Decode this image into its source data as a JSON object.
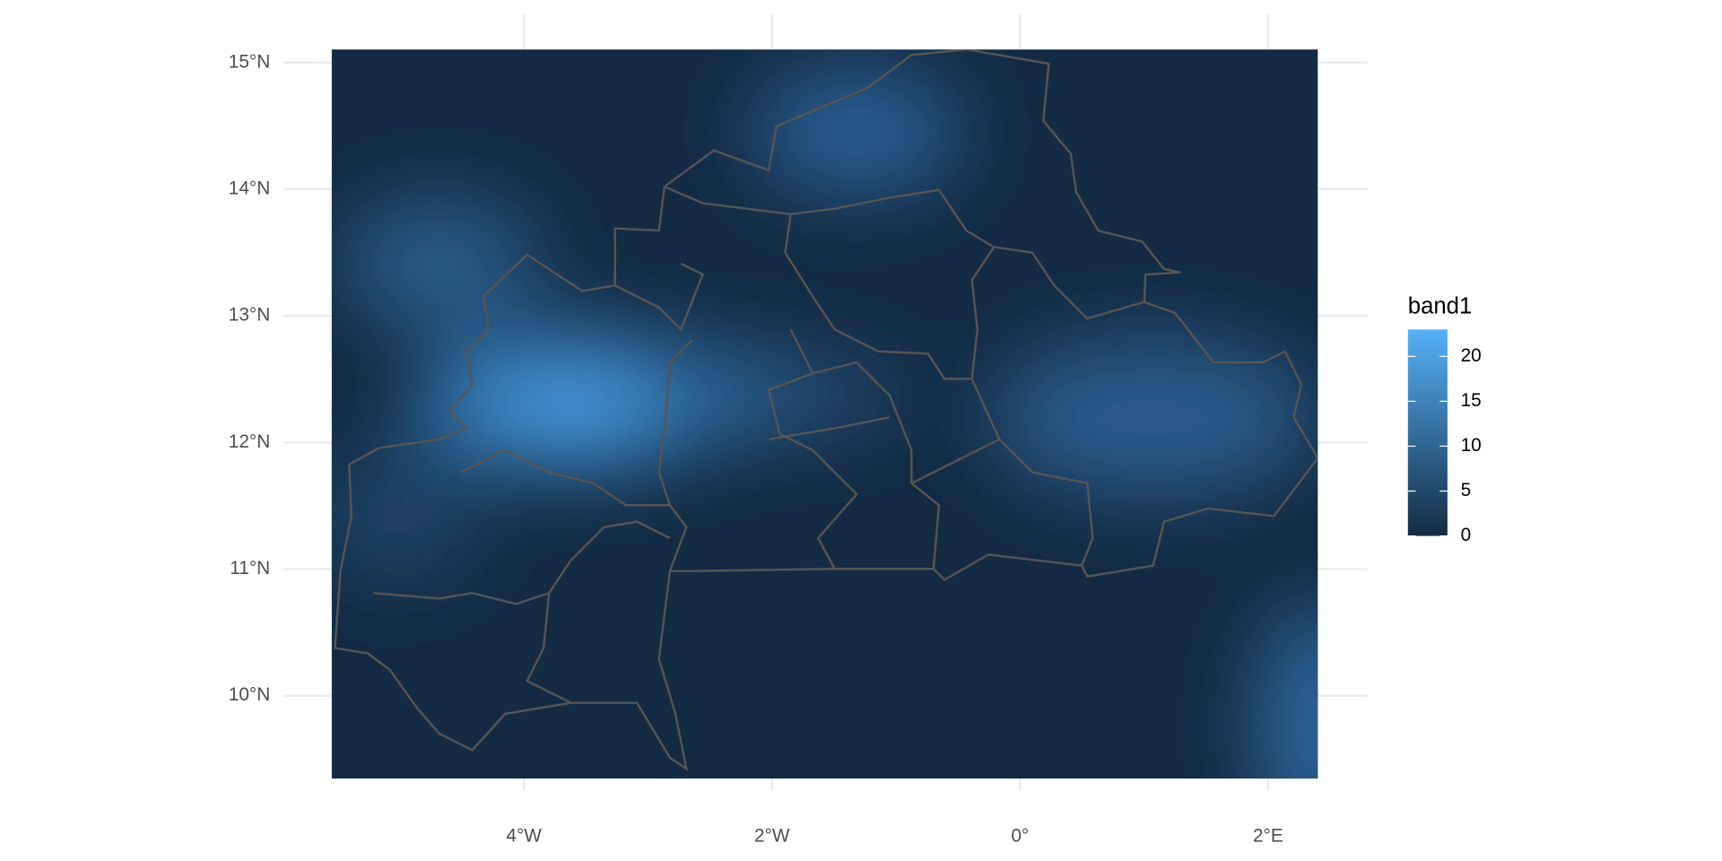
{
  "chart_data": {
    "type": "raster",
    "xlim": [
      -5.94,
      2.8
    ],
    "ylim": [
      9.25,
      15.39
    ],
    "xticks": [
      {
        "value": -4,
        "label": "4°W"
      },
      {
        "value": -2,
        "label": "2°W"
      },
      {
        "value": 0,
        "label": "0°"
      },
      {
        "value": 2,
        "label": "2°E"
      }
    ],
    "yticks": [
      {
        "value": 10,
        "label": "10°N"
      },
      {
        "value": 11,
        "label": "11°N"
      },
      {
        "value": 12,
        "label": "12°N"
      },
      {
        "value": 13,
        "label": "13°N"
      },
      {
        "value": 14,
        "label": "14°N"
      },
      {
        "value": 15,
        "label": "15°N"
      }
    ],
    "grid": true,
    "legend": {
      "title": "band1",
      "lim": [
        0,
        23
      ],
      "ticks": [
        0,
        5,
        10,
        15,
        20
      ],
      "colors": [
        "#132B43",
        "#56B1F7"
      ]
    }
  }
}
